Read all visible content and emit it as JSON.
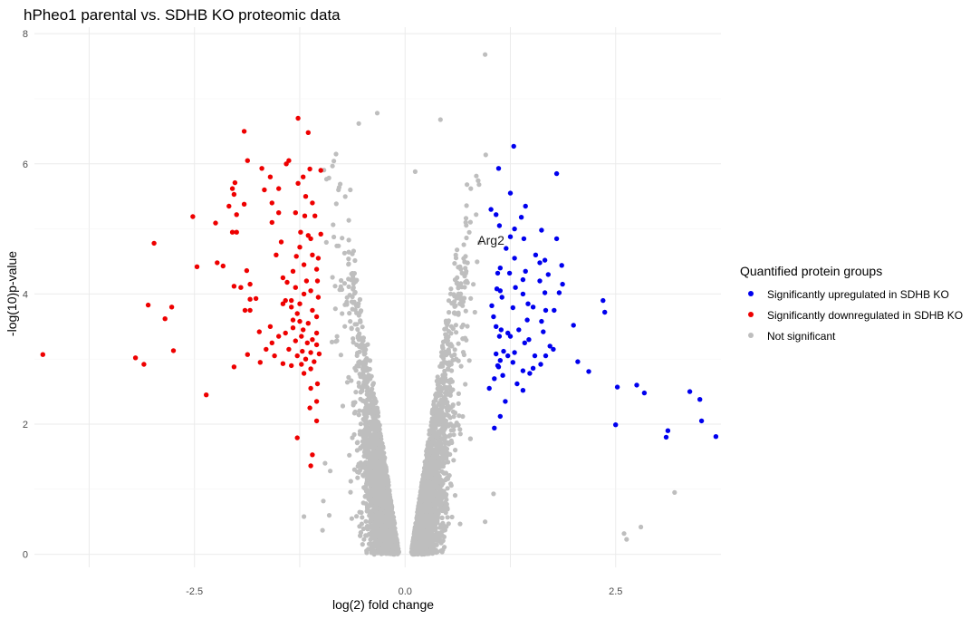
{
  "chart_data": {
    "type": "scatter",
    "title": "hPheo1 parental vs. SDHB KO proteomic data",
    "xlabel": "log(2) fold change",
    "ylabel": "-log(10)p-value",
    "xlim": [
      -4.4,
      3.75
    ],
    "ylim": [
      -0.2,
      8.1
    ],
    "x_ticks": [
      -2.5,
      0.0,
      2.5
    ],
    "x_tick_labels": [
      "-2.5",
      "0.0",
      "2.5"
    ],
    "y_ticks": [
      0,
      2,
      4,
      6,
      8
    ],
    "y_tick_labels": [
      "0",
      "2",
      "4",
      "6",
      "8"
    ],
    "grid": true,
    "legend_position": "right",
    "legend_title": "Quantified protein groups",
    "annotations": [
      {
        "text": "Arg2",
        "x": 1.02,
        "y": 4.83
      }
    ],
    "series": [
      {
        "name": "Significantly upregulated in SDHB KO",
        "color": "#0000ee",
        "points": [
          [
            1.29,
            6.27
          ],
          [
            1.8,
            5.85
          ],
          [
            1.11,
            5.93
          ],
          [
            1.25,
            5.55
          ],
          [
            1.02,
            5.3
          ],
          [
            1.08,
            5.22
          ],
          [
            1.43,
            5.35
          ],
          [
            1.38,
            5.18
          ],
          [
            1.12,
            5.05
          ],
          [
            1.3,
            5.0
          ],
          [
            1.62,
            4.98
          ],
          [
            1.25,
            4.88
          ],
          [
            1.41,
            4.85
          ],
          [
            1.8,
            4.85
          ],
          [
            1.2,
            4.7
          ],
          [
            1.55,
            4.6
          ],
          [
            1.3,
            4.55
          ],
          [
            1.66,
            4.52
          ],
          [
            1.6,
            4.48
          ],
          [
            1.13,
            4.4
          ],
          [
            1.1,
            4.32
          ],
          [
            1.24,
            4.32
          ],
          [
            1.43,
            4.35
          ],
          [
            1.86,
            4.44
          ],
          [
            1.7,
            4.3
          ],
          [
            1.4,
            4.22
          ],
          [
            1.6,
            4.2
          ],
          [
            1.87,
            4.15
          ],
          [
            1.09,
            4.08
          ],
          [
            1.13,
            4.05
          ],
          [
            1.31,
            4.1
          ],
          [
            1.4,
            4.0
          ],
          [
            1.66,
            4.02
          ],
          [
            1.83,
            4.02
          ],
          [
            1.15,
            3.95
          ],
          [
            1.46,
            3.85
          ],
          [
            1.52,
            3.8
          ],
          [
            1.03,
            3.82
          ],
          [
            1.28,
            3.79
          ],
          [
            1.67,
            3.75
          ],
          [
            1.77,
            3.75
          ],
          [
            1.05,
            3.65
          ],
          [
            1.45,
            3.6
          ],
          [
            1.62,
            3.58
          ],
          [
            1.08,
            3.5
          ],
          [
            1.14,
            3.45
          ],
          [
            1.35,
            3.45
          ],
          [
            1.22,
            3.4
          ],
          [
            1.64,
            3.42
          ],
          [
            2.0,
            3.52
          ],
          [
            1.12,
            3.35
          ],
          [
            1.25,
            3.35
          ],
          [
            1.47,
            3.3
          ],
          [
            1.42,
            3.25
          ],
          [
            1.72,
            3.2
          ],
          [
            1.76,
            3.15
          ],
          [
            1.17,
            3.12
          ],
          [
            1.3,
            3.1
          ],
          [
            1.08,
            3.08
          ],
          [
            1.22,
            3.05
          ],
          [
            1.54,
            3.05
          ],
          [
            1.67,
            3.05
          ],
          [
            1.13,
            2.98
          ],
          [
            1.28,
            2.95
          ],
          [
            1.61,
            2.92
          ],
          [
            2.05,
            2.96
          ],
          [
            1.1,
            2.9
          ],
          [
            1.52,
            2.86
          ],
          [
            1.4,
            2.82
          ],
          [
            1.48,
            2.78
          ],
          [
            1.16,
            2.75
          ],
          [
            1.06,
            2.7
          ],
          [
            2.18,
            2.81
          ],
          [
            1.33,
            2.62
          ],
          [
            1.0,
            2.55
          ],
          [
            1.4,
            2.52
          ],
          [
            2.35,
            3.9
          ],
          [
            2.37,
            3.72
          ],
          [
            2.52,
            2.57
          ],
          [
            2.75,
            2.6
          ],
          [
            2.84,
            2.48
          ],
          [
            3.38,
            2.5
          ],
          [
            3.5,
            2.38
          ],
          [
            3.52,
            2.05
          ],
          [
            2.5,
            1.99
          ],
          [
            3.12,
            1.9
          ],
          [
            3.1,
            1.8
          ],
          [
            3.69,
            1.81
          ],
          [
            1.13,
            2.12
          ],
          [
            1.06,
            1.94
          ],
          [
            1.19,
            2.35
          ],
          [
            1.11,
            2.88
          ]
        ]
      },
      {
        "name": "Significantly downregulated in SDHB KO",
        "color": "#ee0000",
        "points": [
          [
            -4.3,
            3.07
          ],
          [
            -3.2,
            3.02
          ],
          [
            -3.1,
            2.92
          ],
          [
            -3.05,
            3.83
          ],
          [
            -2.98,
            4.78
          ],
          [
            -2.85,
            3.62
          ],
          [
            -2.77,
            3.8
          ],
          [
            -2.75,
            3.13
          ],
          [
            -2.52,
            5.19
          ],
          [
            -2.47,
            4.42
          ],
          [
            -2.36,
            2.45
          ],
          [
            -2.25,
            5.09
          ],
          [
            -2.23,
            4.48
          ],
          [
            -2.16,
            4.43
          ],
          [
            -2.09,
            5.35
          ],
          [
            -2.05,
            5.62
          ],
          [
            -2.03,
            5.53
          ],
          [
            -2.02,
            5.71
          ],
          [
            -2.0,
            5.22
          ],
          [
            -2.05,
            4.95
          ],
          [
            -2.0,
            4.95
          ],
          [
            -2.03,
            4.12
          ],
          [
            -1.95,
            4.1
          ],
          [
            -1.91,
            5.38
          ],
          [
            -1.87,
            6.05
          ],
          [
            -1.91,
            6.5
          ],
          [
            -1.88,
            4.36
          ],
          [
            -1.84,
            4.15
          ],
          [
            -1.84,
            3.92
          ],
          [
            -1.9,
            3.75
          ],
          [
            -1.84,
            3.75
          ],
          [
            -1.77,
            3.93
          ],
          [
            -1.7,
            5.93
          ],
          [
            -1.67,
            5.6
          ],
          [
            -1.6,
            5.8
          ],
          [
            -1.58,
            5.4
          ],
          [
            -1.5,
            5.62
          ],
          [
            -1.58,
            5.1
          ],
          [
            -1.5,
            5.25
          ],
          [
            -1.47,
            4.8
          ],
          [
            -1.53,
            4.6
          ],
          [
            -1.45,
            4.25
          ],
          [
            -1.4,
            4.18
          ],
          [
            -1.42,
            3.9
          ],
          [
            -1.45,
            3.85
          ],
          [
            -1.35,
            3.8
          ],
          [
            -1.33,
            3.6
          ],
          [
            -1.25,
            3.58
          ],
          [
            -1.41,
            6.0
          ],
          [
            -1.38,
            6.05
          ],
          [
            -1.27,
            6.7
          ],
          [
            -1.15,
            6.48
          ],
          [
            -1.13,
            5.92
          ],
          [
            -1.0,
            5.9
          ],
          [
            -1.21,
            5.8
          ],
          [
            -1.27,
            5.7
          ],
          [
            -1.18,
            5.5
          ],
          [
            -1.1,
            5.4
          ],
          [
            -1.3,
            5.25
          ],
          [
            -1.19,
            5.2
          ],
          [
            -1.07,
            5.2
          ],
          [
            -1.24,
            4.95
          ],
          [
            -1.15,
            4.9
          ],
          [
            -1.0,
            4.92
          ],
          [
            -1.12,
            4.85
          ],
          [
            -1.25,
            4.72
          ],
          [
            -1.1,
            4.6
          ],
          [
            -1.29,
            4.58
          ],
          [
            -1.03,
            4.55
          ],
          [
            -1.2,
            4.45
          ],
          [
            -1.05,
            4.38
          ],
          [
            -1.33,
            4.35
          ],
          [
            -1.17,
            4.2
          ],
          [
            -1.04,
            4.2
          ],
          [
            -1.3,
            4.1
          ],
          [
            -1.12,
            4.05
          ],
          [
            -1.2,
            4.0
          ],
          [
            -1.03,
            3.95
          ],
          [
            -1.35,
            3.9
          ],
          [
            -1.25,
            3.85
          ],
          [
            -1.1,
            3.75
          ],
          [
            -1.28,
            3.7
          ],
          [
            -1.05,
            3.65
          ],
          [
            -1.15,
            3.55
          ],
          [
            -1.33,
            3.48
          ],
          [
            -1.21,
            3.45
          ],
          [
            -1.05,
            3.4
          ],
          [
            -1.42,
            3.4
          ],
          [
            -1.23,
            3.35
          ],
          [
            -1.1,
            3.3
          ],
          [
            -1.3,
            3.28
          ],
          [
            -1.16,
            3.25
          ],
          [
            -1.05,
            3.22
          ],
          [
            -1.38,
            3.15
          ],
          [
            -1.22,
            3.12
          ],
          [
            -1.12,
            3.1
          ],
          [
            -1.02,
            3.08
          ],
          [
            -1.28,
            3.05
          ],
          [
            -1.18,
            3.0
          ],
          [
            -1.08,
            2.96
          ],
          [
            -1.23,
            2.92
          ],
          [
            -1.35,
            2.9
          ],
          [
            -1.12,
            2.85
          ],
          [
            -1.6,
            3.5
          ],
          [
            -1.73,
            3.42
          ],
          [
            -1.5,
            3.35
          ],
          [
            -1.58,
            3.25
          ],
          [
            -1.65,
            3.15
          ],
          [
            -1.87,
            3.07
          ],
          [
            -1.55,
            3.05
          ],
          [
            -1.72,
            2.95
          ],
          [
            -1.45,
            2.93
          ],
          [
            -2.03,
            2.88
          ],
          [
            -1.2,
            2.78
          ],
          [
            -1.04,
            2.62
          ],
          [
            -1.12,
            2.55
          ],
          [
            -1.05,
            2.35
          ],
          [
            -1.13,
            2.25
          ],
          [
            -1.05,
            2.05
          ],
          [
            -1.28,
            1.79
          ],
          [
            -1.1,
            1.53
          ],
          [
            -1.12,
            1.36
          ]
        ]
      },
      {
        "name": "Not significant",
        "color": "#bebebe",
        "points": []
      }
    ]
  }
}
